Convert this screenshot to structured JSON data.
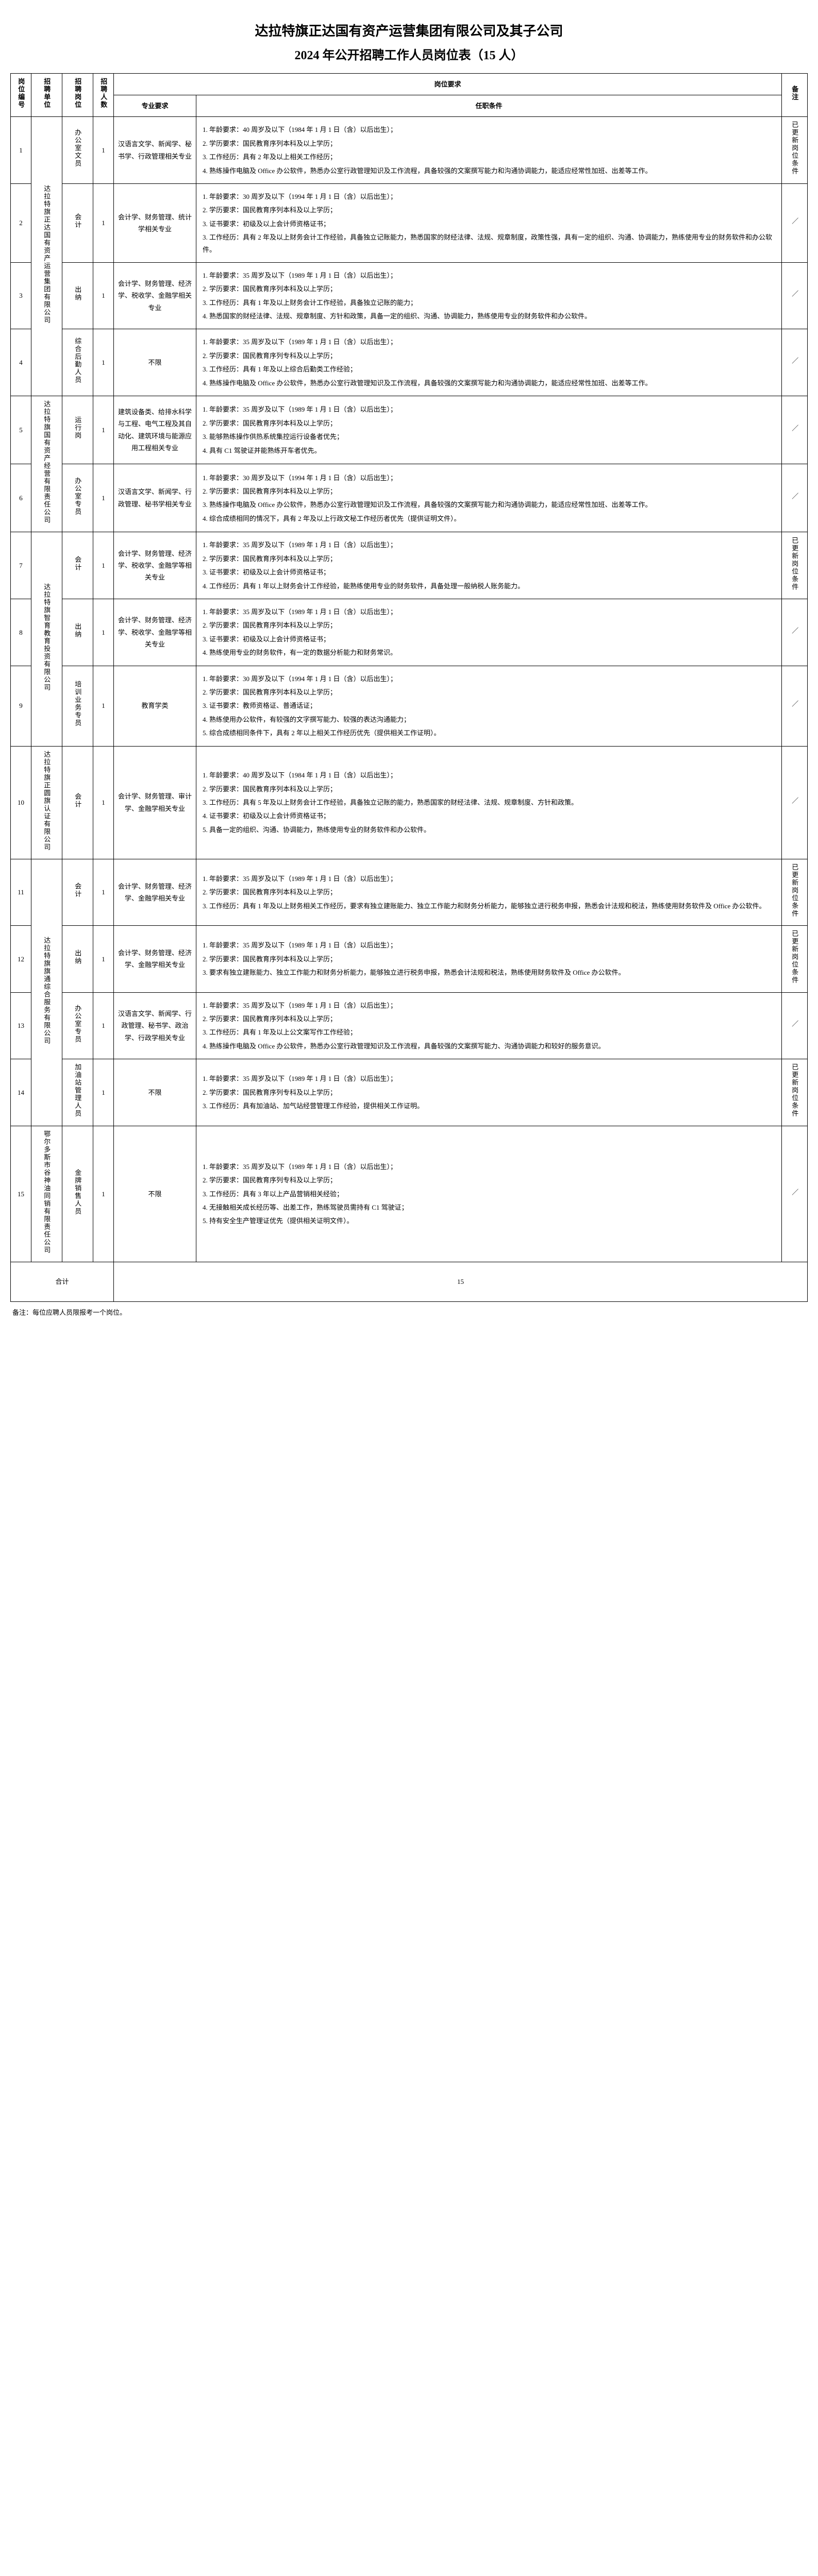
{
  "doc": {
    "title": "达拉特旗正达国有资产运营集团有限公司及其子公司",
    "subtitle": "2024 年公开招聘工作人员岗位表（15 人）",
    "footnote": "备注：每位应聘人员限报考一个岗位。"
  },
  "headers": {
    "idx": "岗位编号",
    "unit": "招聘单位",
    "post": "招聘岗位",
    "num": "招聘人数",
    "group": "岗位要求",
    "major": "专业要求",
    "req": "任职条件",
    "note": "备注"
  },
  "totals": {
    "label": "合计",
    "value": "15"
  },
  "rows": [
    {
      "idx": "1",
      "unit": "达拉特旗正达国有资产运营集团有限公司",
      "unit_rowspan": 4,
      "post": "办公室文员",
      "num": "1",
      "major": "汉语言文学、新闻学、秘书学、行政管理相关专业",
      "req": [
        "1. 年龄要求：40 周岁及以下（1984 年 1 月 1 日（含）以后出生）；",
        "2. 学历要求：国民教育序列本科及以上学历；",
        "3. 工作经历：具有 2 年及以上相关工作经历；",
        "4. 熟练操作电脑及 Office 办公软件，熟悉办公室行政管理知识及工作流程，具备较强的文案撰写能力和沟通协调能力，能适应经常性加班、出差等工作。"
      ],
      "note": "已更新岗位条件"
    },
    {
      "idx": "2",
      "post": "会计",
      "num": "1",
      "major": "会计学、财务管理、统计学相关专业",
      "req": [
        "1. 年龄要求：30 周岁及以下（1994 年 1 月 1 日（含）以后出生）；",
        "2. 学历要求：国民教育序列本科及以上学历；",
        "3. 证书要求：初级及以上会计师资格证书；",
        "3. 工作经历：具有 2 年及以上财务会计工作经验，具备独立记账能力，熟悉国家的财经法律、法规、规章制度，政策性强，具有一定的组织、沟通、协调能力，熟练使用专业的财务软件和办公软件。"
      ],
      "note": "／"
    },
    {
      "idx": "3",
      "post": "出纳",
      "num": "1",
      "major": "会计学、财务管理、经济学、税收学、金融学相关专业",
      "req": [
        "1. 年龄要求：35 周岁及以下（1989 年 1 月 1 日（含）以后出生）；",
        "2. 学历要求：国民教育序列本科及以上学历；",
        "3. 工作经历：具有 1 年及以上财务会计工作经验，具备独立记账的能力；",
        "4. 熟悉国家的财经法律、法规、规章制度、方针和政策，具备一定的组织、沟通、协调能力，熟练使用专业的财务软件和办公软件。"
      ],
      "note": "／"
    },
    {
      "idx": "4",
      "post": "综合后勤人员",
      "num": "1",
      "major": "不限",
      "req": [
        "1. 年龄要求：35 周岁及以下（1989 年 1 月 1 日（含）以后出生）；",
        "2. 学历要求：国民教育序列专科及以上学历；",
        "3. 工作经历：具有 1 年及以上综合后勤类工作经验；",
        "4. 熟练操作电脑及 Office 办公软件，熟悉办公室行政管理知识及工作流程，具备较强的文案撰写能力和沟通协调能力，能适应经常性加班、出差等工作。"
      ],
      "note": "／"
    },
    {
      "idx": "5",
      "unit": "达拉特旗国有资产经营有限责任公司",
      "unit_rowspan": 2,
      "post": "运行岗",
      "num": "1",
      "major": "建筑设备类、给排水科学与工程、电气工程及其自动化、建筑环境与能源应用工程相关专业",
      "req": [
        "1. 年龄要求：35 周岁及以下（1989 年 1 月 1 日（含）以后出生）；",
        "2. 学历要求：国民教育序列本科及以上学历；",
        "3. 能够熟练操作供热系统集控运行设备者优先；",
        "4. 具有 C1 驾驶证并能熟练开车者优先。"
      ],
      "note": "／"
    },
    {
      "idx": "6",
      "post": "办公室专员",
      "num": "1",
      "major": "汉语言文学、新闻学、行政管理、秘书学相关专业",
      "req": [
        "1. 年龄要求：30 周岁及以下（1994 年 1 月 1 日（含）以后出生）；",
        "2. 学历要求：国民教育序列本科及以上学历；",
        "3. 熟练操作电脑及 Office 办公软件，熟悉办公室行政管理知识及工作流程，具备较强的文案撰写能力和沟通协调能力，能适应经常性加班、出差等工作。",
        "4. 综合成绩相同的情况下，具有 2 年及以上行政文秘工作经历者优先（提供证明文件）。"
      ],
      "note": "／"
    },
    {
      "idx": "7",
      "unit": "达拉特旗智育教育投资有限公司",
      "unit_rowspan": 3,
      "post": "会计",
      "num": "1",
      "major": "会计学、财务管理、经济学、税收学、金融学等相关专业",
      "req": [
        "1. 年龄要求：35 周岁及以下（1989 年 1 月 1 日（含）以后出生）；",
        "2. 学历要求：国民教育序列本科及以上学历；",
        "3. 证书要求：初级及以上会计师资格证书；",
        "4. 工作经历：具有 1 年以上财务会计工作经验，能熟练使用专业的财务软件，具备处理一般纳税人账务能力。"
      ],
      "note": "已更新岗位条件"
    },
    {
      "idx": "8",
      "post": "出纳",
      "num": "1",
      "major": "会计学、财务管理、经济学、税收学、金融学等相关专业",
      "req": [
        "1. 年龄要求：35 周岁及以下（1989 年 1 月 1 日（含）以后出生）；",
        "2. 学历要求：国民教育序列本科及以上学历；",
        "3. 证书要求：初级及以上会计师资格证书；",
        "4. 熟练使用专业的财务软件，有一定的数据分析能力和财务常识。"
      ],
      "note": "／"
    },
    {
      "idx": "9",
      "post": "培训业务专员",
      "num": "1",
      "major": "教育学类",
      "req": [
        "1. 年龄要求：30 周岁及以下（1994 年 1 月 1 日（含）以后出生）；",
        "2. 学历要求：国民教育序列本科及以上学历；",
        "3. 证书要求：教师资格证、普通话证；",
        "4. 熟练使用办公软件，有较强的文字撰写能力、较强的表达沟通能力；",
        "5. 综合成绩相同条件下，具有 2 年以上相关工作经历优先（提供相关工作证明）。"
      ],
      "note": "／"
    },
    {
      "idx": "10",
      "unit": "达拉特旗正圆旗认证有限公司",
      "unit_rowspan": 1,
      "post": "会计",
      "num": "1",
      "major": "会计学、财务管理、审计学、金融学相关专业",
      "req": [
        "1. 年龄要求：40 周岁及以下（1984 年 1 月 1 日（含）以后出生）；",
        "2. 学历要求：国民教育序列本科及以上学历；",
        "3. 工作经历：具有 5 年及以上财务会计工作经验，具备独立记账的能力，熟悉国家的财经法律、法规、规章制度、方针和政策。",
        "4. 证书要求：初级及以上会计师资格证书；",
        "5. 具备一定的组织、沟通、协调能力，熟练使用专业的财务软件和办公软件。"
      ],
      "note": "／"
    },
    {
      "idx": "11",
      "unit": "达拉特旗旗通综合服务有限公司",
      "unit_rowspan": 4,
      "post": "会计",
      "num": "1",
      "major": "会计学、财务管理、经济学、金融学相关专业",
      "req": [
        "1. 年龄要求：35 周岁及以下（1989 年 1 月 1 日（含）以后出生）；",
        "2. 学历要求：国民教育序列本科及以上学历；",
        "3. 工作经历：具有 1 年及以上财务相关工作经历，要求有独立建账能力、独立工作能力和财务分析能力，能够独立进行税务申报，熟悉会计法规和税法，熟练使用财务软件及 Office 办公软件。"
      ],
      "note": "已更新岗位条件"
    },
    {
      "idx": "12",
      "post": "出纳",
      "num": "1",
      "major": "会计学、财务管理、经济学、金融学相关专业",
      "req": [
        "1. 年龄要求：35 周岁及以下（1989 年 1 月 1 日（含）以后出生）；",
        "2. 学历要求：国民教育序列本科及以上学历；",
        "3. 要求有独立建账能力、独立工作能力和财务分析能力，能够独立进行税务申报，熟悉会计法规和税法，熟练使用财务软件及 Office 办公软件。"
      ],
      "note": "已更新岗位条件"
    },
    {
      "idx": "13",
      "post": "办公室专员",
      "num": "1",
      "major": "汉语言文学、新闻学、行政管理、秘书学、政治学、行政学相关专业",
      "req": [
        "1. 年龄要求：35 周岁及以下（1989 年 1 月 1 日（含）以后出生）；",
        "2. 学历要求：国民教育序列本科及以上学历；",
        "3. 工作经历：具有 1 年及以上公文案写作工作经验；",
        "4. 熟练操作电脑及 Office 办公软件，熟悉办公室行政管理知识及工作流程，具备较强的文案撰写能力、沟通协调能力和较好的服务意识。"
      ],
      "note": "／"
    },
    {
      "idx": "14",
      "post": "加油站管理人员",
      "num": "1",
      "major": "不限",
      "req": [
        "1. 年龄要求：35 周岁及以下（1989 年 1 月 1 日（含）以后出生）；",
        "2. 学历要求：国民教育序列专科及以上学历；",
        "3. 工作经历：具有加油站、加气站经营管理工作经验，提供相关工作证明。"
      ],
      "note": "已更新岗位条件"
    },
    {
      "idx": "15",
      "unit": "鄂尔多斯市谷神油同销有限责任公司",
      "unit_rowspan": 1,
      "post": "金牌销售人员",
      "num": "1",
      "major": "不限",
      "req": [
        "1. 年龄要求：35 周岁及以下（1989 年 1 月 1 日（含）以后出生）；",
        "2. 学历要求：国民教育序列专科及以上学历；",
        "3. 工作经历：具有 3 年以上产品营销相关经验；",
        "4. 无接触相关成长经历等、出差工作，熟练驾驶员需持有 C1 驾驶证；",
        "5. 持有安全生产管理证优先（提供相关证明文件）。"
      ],
      "note": "／"
    }
  ]
}
